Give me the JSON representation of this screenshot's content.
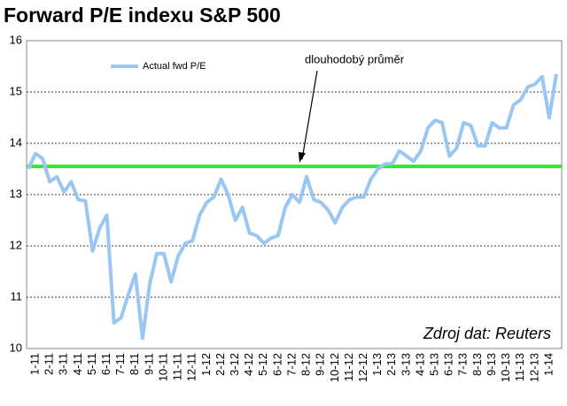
{
  "chart_data": {
    "type": "line",
    "title": "Forward P/E indexu S&P 500",
    "categories": [
      null,
      "1-11",
      null,
      "2-11",
      null,
      "3-11",
      null,
      "4-11",
      null,
      "5-11",
      null,
      "6-11",
      null,
      "7-11",
      null,
      "8-11",
      null,
      "9-11",
      null,
      "10-11",
      null,
      "11-11",
      null,
      "12-11",
      null,
      "1-12",
      null,
      "2-12",
      null,
      "3-12",
      null,
      "4-12",
      null,
      "5-12",
      null,
      "6-12",
      null,
      "7-12",
      null,
      "8-12",
      null,
      "9-12",
      null,
      "10-12",
      null,
      "11-12",
      null,
      "12-12",
      null,
      "1-13",
      null,
      "2-13",
      null,
      "3-13",
      null,
      "4-13",
      null,
      "5-13",
      null,
      "6-13",
      null,
      "7-13",
      null,
      "8-13",
      null,
      "9-13",
      null,
      "10-13",
      null,
      "11-13",
      null,
      "12-13",
      null,
      "1-14",
      null
    ],
    "series": [
      {
        "name": "Actual fwd P/E",
        "color": "#99c7f2",
        "values": [
          13.5,
          13.8,
          13.7,
          13.25,
          13.35,
          13.05,
          13.25,
          12.9,
          12.88,
          11.9,
          12.35,
          12.6,
          10.5,
          10.6,
          11.05,
          11.45,
          10.2,
          11.25,
          11.85,
          11.85,
          11.3,
          11.8,
          12.05,
          12.1,
          12.6,
          12.85,
          12.95,
          13.3,
          13.0,
          12.5,
          12.75,
          12.25,
          12.2,
          12.05,
          12.15,
          12.2,
          12.75,
          13.0,
          12.85,
          13.35,
          12.9,
          12.85,
          12.7,
          12.45,
          12.75,
          12.9,
          12.95,
          12.95,
          13.3,
          13.5,
          13.6,
          13.6,
          13.85,
          13.75,
          13.65,
          13.85,
          14.3,
          14.45,
          14.4,
          13.75,
          13.9,
          14.4,
          14.35,
          13.95,
          13.95,
          14.4,
          14.3,
          14.3,
          14.75,
          14.85,
          15.1,
          15.15,
          15.3,
          14.5,
          15.35
        ]
      }
    ],
    "reference_line": {
      "value": 13.55,
      "color": "#33e633"
    },
    "annotation": "dlouhodobý  průměr",
    "source": "Zdroj dat: Reuters",
    "ylim": [
      10,
      16
    ],
    "yticks": [
      10,
      11,
      12,
      13,
      14,
      15,
      16
    ],
    "grid": true,
    "legend": "top-left"
  }
}
